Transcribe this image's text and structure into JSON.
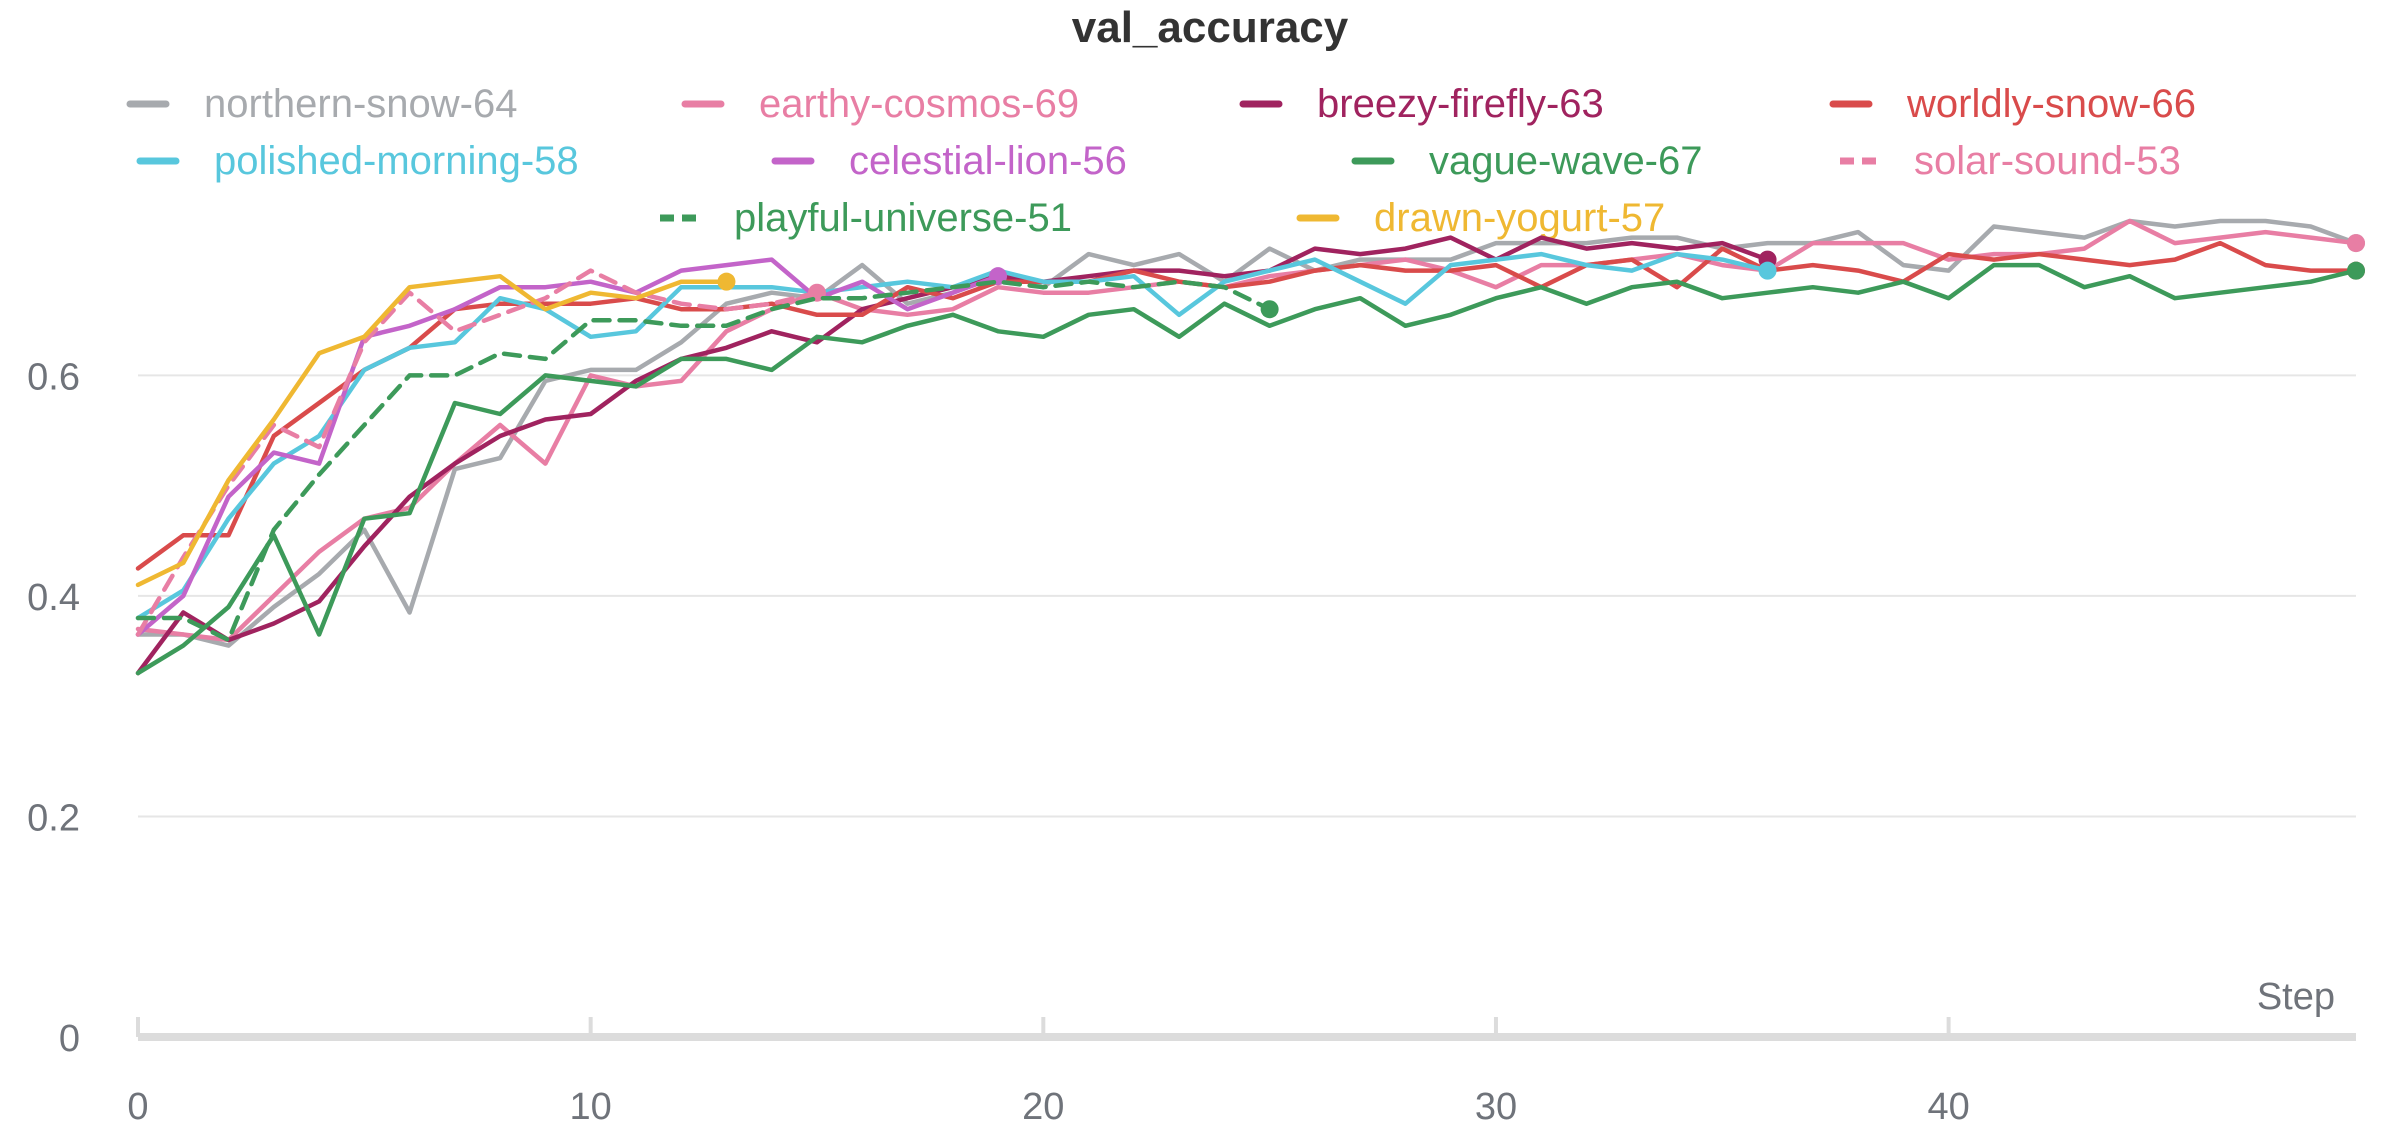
{
  "chart_data": {
    "type": "line",
    "title": "val_accuracy",
    "xlabel": "Step",
    "ylabel": "",
    "xlim": [
      0,
      49
    ],
    "ylim": [
      0,
      0.75
    ],
    "x_ticks": [
      "0",
      "10",
      "20",
      "30",
      "40"
    ],
    "y_ticks": [
      "0",
      "0.2",
      "0.4",
      "0.6"
    ],
    "legend_position": "top",
    "grid": true,
    "series": [
      {
        "name": "northern-snow-64",
        "color": "#a7aaae",
        "dash": false,
        "values": [
          0.365,
          0.365,
          0.355,
          0.39,
          0.42,
          0.46,
          0.385,
          0.515,
          0.525,
          0.595,
          0.605,
          0.605,
          0.63,
          0.665,
          0.675,
          0.67,
          0.7,
          0.665,
          0.675,
          0.695,
          0.68,
          0.71,
          0.7,
          0.71,
          0.685,
          0.715,
          0.695,
          0.705,
          0.705,
          0.705,
          0.72,
          0.72,
          0.72,
          0.725,
          0.725,
          0.715,
          0.72,
          0.72,
          0.73,
          0.7,
          0.695,
          0.735,
          0.73,
          0.725,
          0.74,
          0.735,
          0.74,
          0.74,
          0.735,
          0.72
        ]
      },
      {
        "name": "earthy-cosmos-69",
        "color": "#e87ea4",
        "dash": false,
        "values": [
          0.37,
          0.365,
          0.36,
          0.4,
          0.44,
          0.47,
          0.48,
          0.52,
          0.555,
          0.52,
          0.6,
          0.59,
          0.595,
          0.64,
          0.66,
          0.675,
          0.66,
          0.655,
          0.66,
          0.68,
          0.675,
          0.675,
          0.68,
          0.685,
          0.68,
          0.69,
          0.695,
          0.7,
          0.705,
          0.695,
          0.68,
          0.7,
          0.7,
          0.705,
          0.71,
          0.7,
          0.695,
          0.72,
          0.72,
          0.72,
          0.705,
          0.71,
          0.71,
          0.715,
          0.74,
          0.72,
          0.725,
          0.73,
          0.725,
          0.72
        ]
      },
      {
        "name": "breezy-firefly-63",
        "color": "#a0235f",
        "dash": false,
        "values": [
          0.33,
          0.385,
          0.36,
          0.375,
          0.395,
          0.445,
          0.49,
          0.52,
          0.545,
          0.56,
          0.565,
          0.595,
          0.615,
          0.625,
          0.64,
          0.63,
          0.66,
          0.67,
          0.68,
          0.69,
          0.685,
          0.69,
          0.695,
          0.695,
          0.69,
          0.695,
          0.715,
          0.71,
          0.715,
          0.725,
          0.705,
          0.725,
          0.715,
          0.72,
          0.715,
          0.72,
          0.705
        ]
      },
      {
        "name": "worldly-snow-66",
        "color": "#d94b4b",
        "dash": false,
        "values": [
          0.425,
          0.455,
          0.455,
          0.545,
          0.575,
          0.605,
          0.625,
          0.66,
          0.665,
          0.665,
          0.665,
          0.67,
          0.66,
          0.66,
          0.665,
          0.655,
          0.655,
          0.68,
          0.67,
          0.685,
          0.685,
          0.685,
          0.695,
          0.685,
          0.68,
          0.685,
          0.695,
          0.7,
          0.695,
          0.695,
          0.7,
          0.68,
          0.7,
          0.705,
          0.68,
          0.715,
          0.695,
          0.7,
          0.695,
          0.685,
          0.71,
          0.705,
          0.71,
          0.705,
          0.7,
          0.705,
          0.72,
          0.7,
          0.695,
          0.695
        ]
      },
      {
        "name": "polished-morning-58",
        "color": "#58c7dd",
        "dash": false,
        "values": [
          0.38,
          0.405,
          0.47,
          0.52,
          0.545,
          0.605,
          0.625,
          0.63,
          0.67,
          0.66,
          0.635,
          0.64,
          0.68,
          0.68,
          0.68,
          0.675,
          0.68,
          0.685,
          0.68,
          0.695,
          0.685,
          0.685,
          0.69,
          0.655,
          0.685,
          0.695,
          0.705,
          0.685,
          0.665,
          0.7,
          0.705,
          0.71,
          0.7,
          0.695,
          0.71,
          0.705,
          0.695
        ]
      },
      {
        "name": "celestial-lion-56",
        "color": "#c364c9",
        "dash": false,
        "values": [
          0.365,
          0.4,
          0.49,
          0.53,
          0.52,
          0.635,
          0.645,
          0.66,
          0.68,
          0.68,
          0.685,
          0.675,
          0.695,
          0.7,
          0.705,
          0.67,
          0.685,
          0.66,
          0.675,
          0.69
        ]
      },
      {
        "name": "vague-wave-67",
        "color": "#3d9a5a",
        "dash": false,
        "values": [
          0.33,
          0.355,
          0.39,
          0.455,
          0.365,
          0.47,
          0.475,
          0.575,
          0.565,
          0.6,
          0.595,
          0.59,
          0.615,
          0.615,
          0.605,
          0.635,
          0.63,
          0.645,
          0.655,
          0.64,
          0.635,
          0.655,
          0.66,
          0.635,
          0.665,
          0.645,
          0.66,
          0.67,
          0.645,
          0.655,
          0.67,
          0.68,
          0.665,
          0.68,
          0.685,
          0.67,
          0.675,
          0.68,
          0.675,
          0.685,
          0.67,
          0.7,
          0.7,
          0.68,
          0.69,
          0.67,
          0.675,
          0.68,
          0.685,
          0.695
        ]
      },
      {
        "name": "solar-sound-53",
        "color": "#e87ea4",
        "dash": true,
        "values": [
          0.365,
          0.435,
          0.5,
          0.555,
          0.535,
          0.63,
          0.675,
          0.64,
          0.655,
          0.67,
          0.695,
          0.675,
          0.665,
          0.66,
          0.665,
          0.675
        ]
      },
      {
        "name": "playful-universe-51",
        "color": "#3d9a5a",
        "dash": true,
        "values": [
          0.38,
          0.38,
          0.36,
          0.46,
          0.51,
          0.555,
          0.6,
          0.6,
          0.62,
          0.615,
          0.65,
          0.65,
          0.645,
          0.645,
          0.66,
          0.67,
          0.67,
          0.675,
          0.68,
          0.685,
          0.68,
          0.685,
          0.68,
          0.685,
          0.68,
          0.66
        ]
      },
      {
        "name": "drawn-yogurt-57",
        "color": "#efb832",
        "dash": false,
        "values": [
          0.41,
          0.43,
          0.505,
          0.56,
          0.62,
          0.635,
          0.68,
          0.685,
          0.69,
          0.66,
          0.675,
          0.67,
          0.685,
          0.685
        ]
      }
    ]
  }
}
